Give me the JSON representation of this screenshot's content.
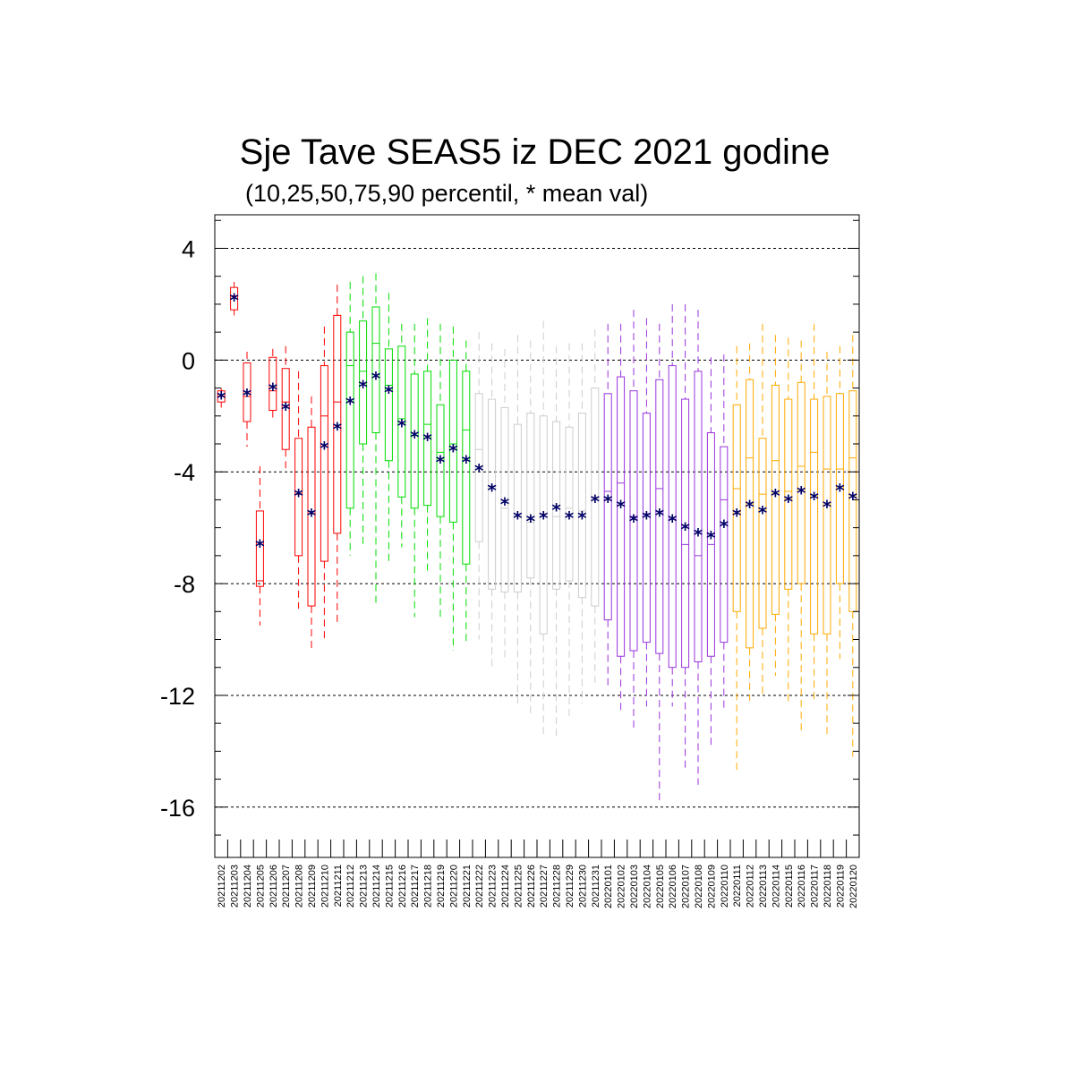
{
  "chart_data": {
    "type": "box",
    "title": "Sje Tave SEAS5 iz DEC 2021 godine",
    "subtitle": "(10,25,50,75,90 percentil, * mean val)",
    "xlabel": "",
    "ylabel": "",
    "ylim": [
      -17.8,
      5.2
    ],
    "yticks": [
      4,
      0,
      -4,
      -8,
      -12,
      -16
    ],
    "ytick_labels": [
      "4",
      "0",
      "-4",
      "-8",
      "-12",
      "-16"
    ],
    "grid": "horizontal dashed at major ticks",
    "mean_color": "#000066",
    "categories": [
      "20211202",
      "20211203",
      "20211204",
      "20211205",
      "20211206",
      "20211207",
      "20211208",
      "20211209",
      "20211210",
      "20211211",
      "20211212",
      "20211213",
      "20211214",
      "20211215",
      "20211216",
      "20211217",
      "20211218",
      "20211219",
      "20211220",
      "20211221",
      "20211222",
      "20211223",
      "20211224",
      "20211225",
      "20211226",
      "20211227",
      "20211228",
      "20211229",
      "20211230",
      "20211231",
      "20220101",
      "20220102",
      "20220103",
      "20220104",
      "20220105",
      "20220106",
      "20220107",
      "20220108",
      "20220109",
      "20220110",
      "20220111",
      "20220112",
      "20220113",
      "20220114",
      "20220115",
      "20220116",
      "20220117",
      "20220118",
      "20220119",
      "20220120"
    ],
    "colors": [
      "#ff0000",
      "#ff0000",
      "#ff0000",
      "#ff0000",
      "#ff0000",
      "#ff0000",
      "#ff0000",
      "#ff0000",
      "#ff0000",
      "#ff0000",
      "#00dd00",
      "#00dd00",
      "#00dd00",
      "#00dd00",
      "#00dd00",
      "#00dd00",
      "#00dd00",
      "#00dd00",
      "#00dd00",
      "#00dd00",
      "#cccccc",
      "#cccccc",
      "#cccccc",
      "#cccccc",
      "#cccccc",
      "#cccccc",
      "#cccccc",
      "#cccccc",
      "#cccccc",
      "#cccccc",
      "#9933dd",
      "#9933dd",
      "#9933dd",
      "#9933dd",
      "#9933dd",
      "#9933dd",
      "#9933dd",
      "#9933dd",
      "#9933dd",
      "#9933dd",
      "#ffaa00",
      "#ffaa00",
      "#ffaa00",
      "#ffaa00",
      "#ffaa00",
      "#ffaa00",
      "#ffaa00",
      "#ffaa00",
      "#ffaa00",
      "#ffaa00"
    ],
    "p10": [
      -1.7,
      1.6,
      -3.1,
      -9.5,
      -2.2,
      -4.0,
      -8.9,
      -10.4,
      -10.0,
      -9.4,
      -7.0,
      -6.7,
      -8.8,
      -7.2,
      -6.7,
      -9.2,
      -7.7,
      -9.2,
      -10.4,
      -10.1,
      -10.0,
      -11.0,
      -10.8,
      -12.3,
      -12.7,
      -13.5,
      -13.5,
      -12.8,
      -12.3,
      -11.7,
      -11.8,
      -12.6,
      -13.2,
      -12.4,
      -15.8,
      -12.4,
      -14.6,
      -15.2,
      -13.8,
      -12.5,
      -14.7,
      -12.2,
      -12.0,
      -11.3,
      -12.3,
      -13.4,
      -12.3,
      -13.4,
      -10.7,
      -14.2
    ],
    "p25": [
      -1.5,
      1.8,
      -2.2,
      -8.1,
      -1.8,
      -3.2,
      -7.0,
      -8.8,
      -7.2,
      -6.2,
      -5.3,
      -3.0,
      -2.6,
      -3.6,
      -4.9,
      -5.3,
      -5.2,
      -5.6,
      -5.8,
      -7.3,
      -6.5,
      -8.2,
      -8.3,
      -8.3,
      -7.8,
      -9.8,
      -8.2,
      -7.9,
      -8.5,
      -8.8,
      -9.3,
      -10.6,
      -10.4,
      -10.1,
      -10.5,
      -11.0,
      -11.0,
      -10.8,
      -10.6,
      -10.1,
      -9.0,
      -10.3,
      -9.6,
      -9.1,
      -8.2,
      -8.0,
      -9.8,
      -9.8,
      -8.0,
      -9.0
    ],
    "p50": [
      -1.3,
      2.3,
      -1.3,
      -7.9,
      -1.1,
      -1.5,
      -4.8,
      -5.5,
      -2.0,
      -1.5,
      -0.2,
      -0.4,
      0.6,
      -0.9,
      -2.1,
      -2.7,
      -2.3,
      -3.3,
      -3.0,
      -2.5,
      -3.2,
      -4.5,
      -5.3,
      -5.6,
      -5.8,
      -5.5,
      -5.6,
      -5.3,
      -5.4,
      -4.9,
      -4.7,
      -4.4,
      -5.6,
      -5.5,
      -4.6,
      -5.7,
      -6.6,
      -7.0,
      -6.6,
      -5.0,
      -4.6,
      -3.5,
      -4.8,
      -3.6,
      -4.7,
      -3.8,
      -3.3,
      -3.9,
      -3.9,
      -3.5
    ],
    "p75": [
      -1.1,
      2.6,
      -0.1,
      -5.4,
      0.1,
      -0.3,
      -2.8,
      -2.4,
      -0.2,
      1.6,
      1.0,
      1.4,
      1.9,
      0.4,
      0.5,
      -0.5,
      -0.4,
      -1.6,
      0.0,
      -0.4,
      -1.2,
      -1.4,
      -1.7,
      -2.3,
      -1.9,
      -2.0,
      -2.2,
      -2.4,
      -1.9,
      -1.0,
      -1.2,
      -0.6,
      -1.1,
      -1.9,
      -0.7,
      -0.2,
      -1.4,
      -0.4,
      -2.6,
      -3.1,
      -1.6,
      -0.7,
      -2.8,
      -0.9,
      -1.4,
      -0.8,
      -1.4,
      -1.3,
      -1.2,
      -1.1
    ],
    "p90": [
      -1.0,
      2.8,
      0.3,
      -3.8,
      0.4,
      0.5,
      -0.4,
      -1.3,
      1.2,
      2.7,
      2.8,
      3.0,
      3.1,
      2.4,
      1.3,
      1.3,
      1.5,
      1.3,
      1.2,
      0.7,
      1.0,
      0.6,
      0.4,
      0.9,
      0.7,
      1.4,
      0.5,
      0.6,
      0.6,
      1.1,
      1.3,
      1.3,
      1.8,
      1.5,
      1.3,
      2.0,
      2.0,
      1.8,
      0.1,
      0.2,
      0.5,
      0.6,
      1.3,
      0.9,
      0.8,
      0.7,
      1.3,
      0.3,
      0.5,
      0.9
    ],
    "mean": [
      -1.3,
      2.2,
      -1.2,
      -6.6,
      -1.0,
      -1.7,
      -4.8,
      -5.5,
      -3.1,
      -2.4,
      -1.5,
      -0.9,
      -0.6,
      -1.1,
      -2.3,
      -2.7,
      -2.8,
      -3.6,
      -3.2,
      -3.6,
      -3.9,
      -4.6,
      -5.1,
      -5.6,
      -5.7,
      -5.6,
      -5.3,
      -5.6,
      -5.6,
      -5.0,
      -5.0,
      -5.2,
      -5.7,
      -5.6,
      -5.5,
      -5.7,
      -6.0,
      -6.2,
      -6.3,
      -5.9,
      -5.5,
      -5.2,
      -5.4,
      -4.8,
      -5.0,
      -4.7,
      -4.9,
      -5.2,
      -4.6,
      -4.9
    ]
  }
}
